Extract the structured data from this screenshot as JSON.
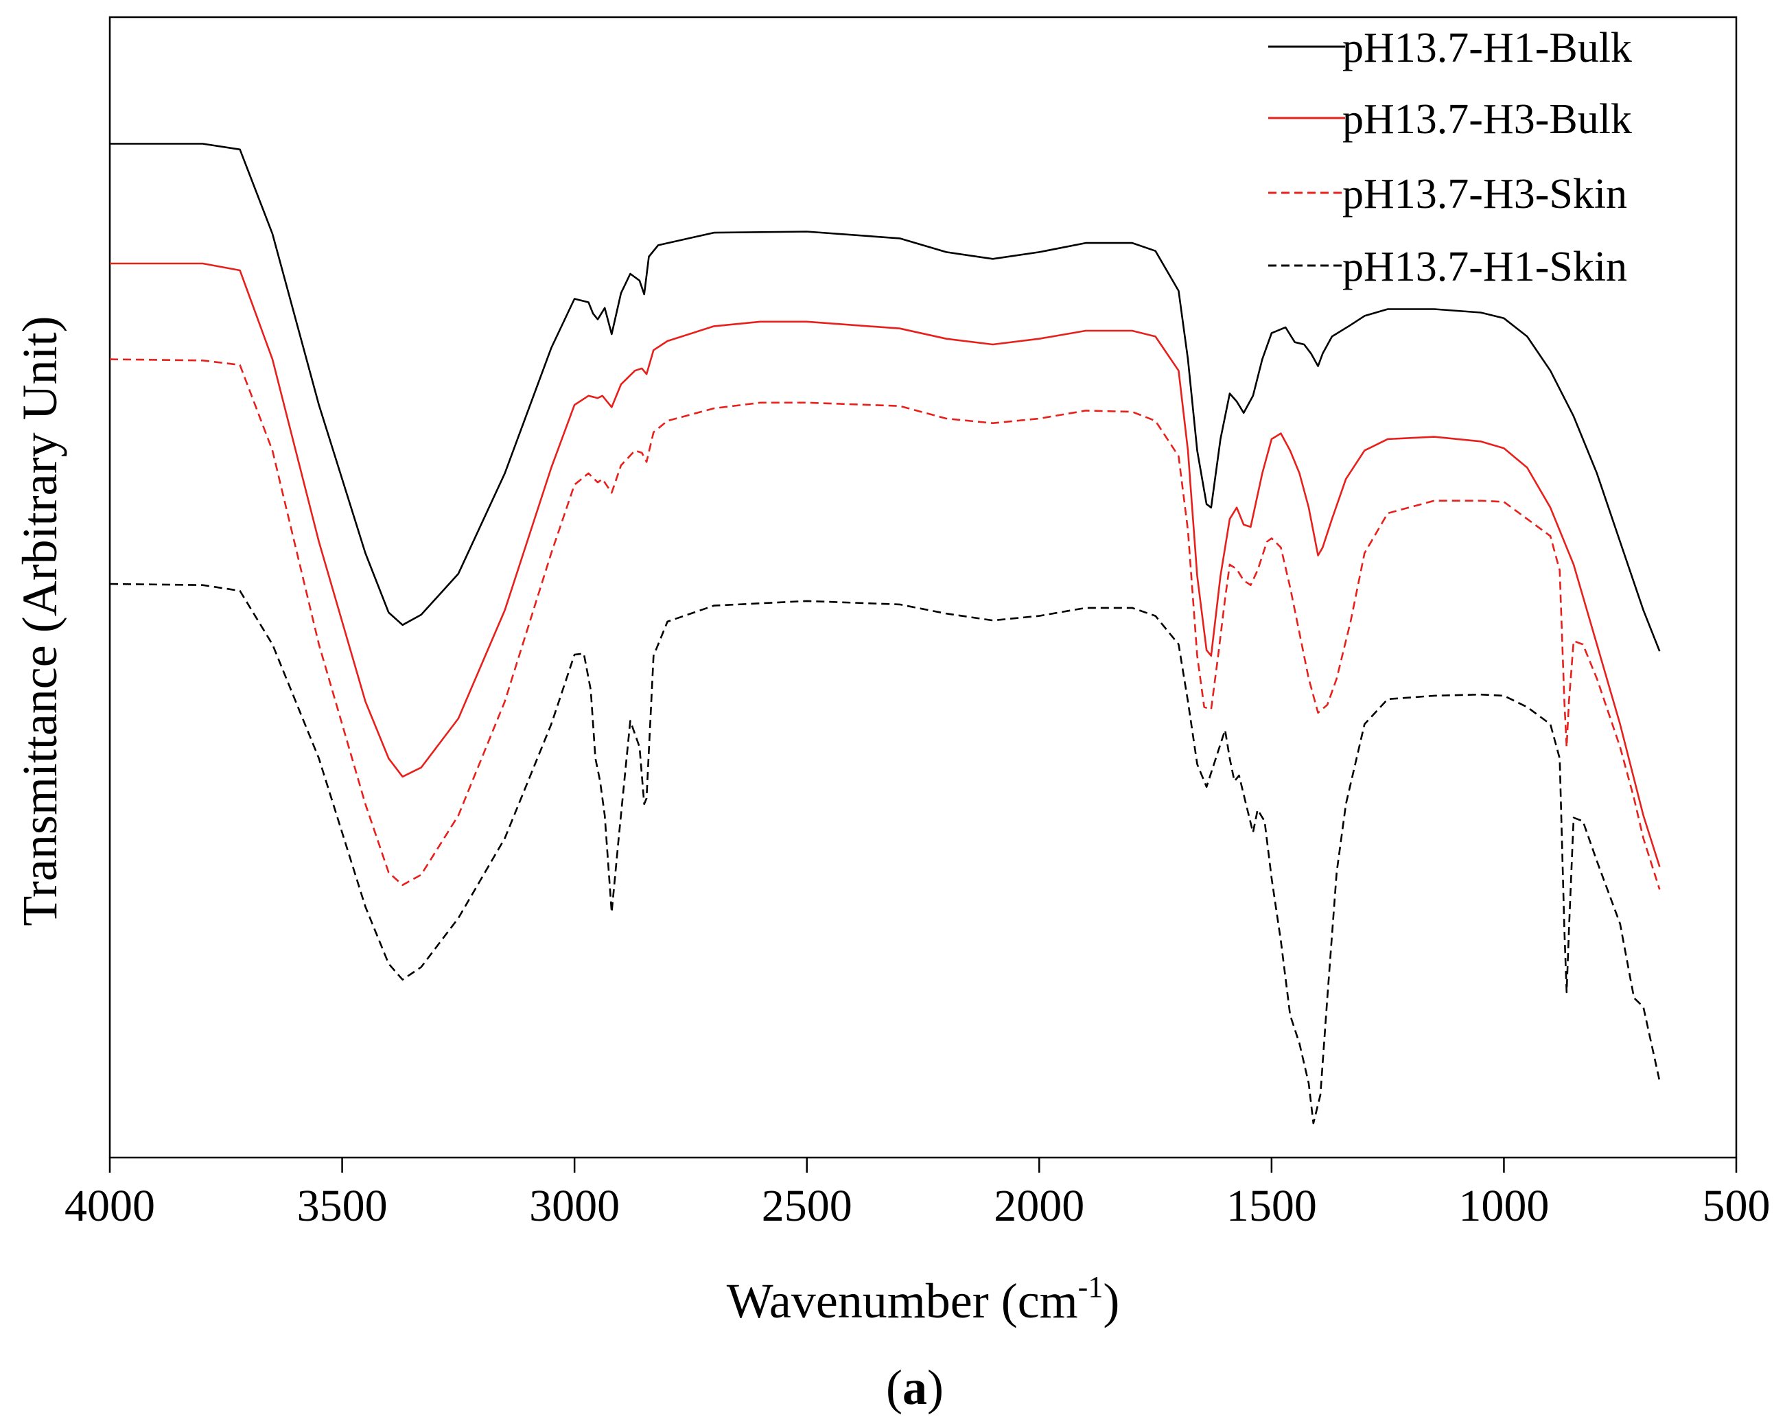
{
  "chart_data": {
    "type": "line",
    "title": "",
    "xlabel": "Wavenumber (cm",
    "xlabel_superscript": "-1",
    "xlabel_suffix": ")",
    "ylabel": "Transmittance (Arbitrary Unit)",
    "caption_open": "(",
    "caption_letter": "a",
    "caption_close": ")",
    "xlim": [
      4000,
      500
    ],
    "ylim": [
      0,
      100
    ],
    "x_ticks": [
      4000,
      3500,
      3000,
      2500,
      2000,
      1500,
      1000,
      500
    ],
    "x_tick_labels": [
      "4000",
      "3500",
      "3000",
      "2500",
      "2000",
      "1500",
      "1000",
      "500"
    ],
    "grid": false,
    "legend_position": "top-right",
    "series": [
      {
        "name": "pH13.7-H1-Bulk",
        "color": "#000000",
        "dash": "solid",
        "points": [
          [
            4000,
            88.9
          ],
          [
            3800,
            88.9
          ],
          [
            3720,
            88.4
          ],
          [
            3650,
            81
          ],
          [
            3550,
            66
          ],
          [
            3450,
            53
          ],
          [
            3400,
            47.8
          ],
          [
            3370,
            46.7
          ],
          [
            3330,
            47.6
          ],
          [
            3250,
            51.2
          ],
          [
            3150,
            60
          ],
          [
            3050,
            71
          ],
          [
            3000,
            75.3
          ],
          [
            2970,
            75
          ],
          [
            2960,
            74
          ],
          [
            2950,
            73.5
          ],
          [
            2935,
            74.5
          ],
          [
            2920,
            72.2
          ],
          [
            2900,
            75.8
          ],
          [
            2880,
            77.5
          ],
          [
            2860,
            76.9
          ],
          [
            2850,
            75.7
          ],
          [
            2840,
            79
          ],
          [
            2820,
            80
          ],
          [
            2700,
            81.1
          ],
          [
            2500,
            81.2
          ],
          [
            2300,
            80.6
          ],
          [
            2200,
            79.4
          ],
          [
            2100,
            78.8
          ],
          [
            2000,
            79.4
          ],
          [
            1900,
            80.2
          ],
          [
            1800,
            80.2
          ],
          [
            1750,
            79.5
          ],
          [
            1700,
            76
          ],
          [
            1680,
            70
          ],
          [
            1660,
            62
          ],
          [
            1640,
            57.3
          ],
          [
            1630,
            57
          ],
          [
            1610,
            63
          ],
          [
            1590,
            67
          ],
          [
            1575,
            66.3
          ],
          [
            1560,
            65.3
          ],
          [
            1540,
            66.8
          ],
          [
            1520,
            70
          ],
          [
            1500,
            72.3
          ],
          [
            1470,
            72.8
          ],
          [
            1450,
            71.5
          ],
          [
            1430,
            71.3
          ],
          [
            1415,
            70.5
          ],
          [
            1400,
            69.4
          ],
          [
            1390,
            70.5
          ],
          [
            1370,
            72
          ],
          [
            1330,
            73
          ],
          [
            1300,
            73.8
          ],
          [
            1250,
            74.4
          ],
          [
            1150,
            74.4
          ],
          [
            1050,
            74.1
          ],
          [
            1000,
            73.6
          ],
          [
            950,
            72
          ],
          [
            900,
            69
          ],
          [
            850,
            65
          ],
          [
            800,
            60
          ],
          [
            750,
            54
          ],
          [
            700,
            48
          ],
          [
            665,
            44.4
          ]
        ]
      },
      {
        "name": "pH13.7-H3-Bulk",
        "color": "#e8201c",
        "dash": "solid",
        "points": [
          [
            4000,
            78.4
          ],
          [
            3800,
            78.4
          ],
          [
            3720,
            77.8
          ],
          [
            3650,
            70
          ],
          [
            3550,
            54
          ],
          [
            3450,
            40
          ],
          [
            3400,
            35
          ],
          [
            3370,
            33.4
          ],
          [
            3330,
            34.2
          ],
          [
            3250,
            38.5
          ],
          [
            3150,
            48
          ],
          [
            3050,
            60.5
          ],
          [
            3000,
            66
          ],
          [
            2970,
            66.8
          ],
          [
            2950,
            66.6
          ],
          [
            2940,
            66.8
          ],
          [
            2920,
            65.8
          ],
          [
            2900,
            67.8
          ],
          [
            2870,
            69
          ],
          [
            2855,
            69.2
          ],
          [
            2845,
            68.7
          ],
          [
            2830,
            70.8
          ],
          [
            2800,
            71.6
          ],
          [
            2700,
            72.9
          ],
          [
            2600,
            73.3
          ],
          [
            2500,
            73.3
          ],
          [
            2300,
            72.7
          ],
          [
            2200,
            71.8
          ],
          [
            2100,
            71.3
          ],
          [
            2000,
            71.8
          ],
          [
            1900,
            72.5
          ],
          [
            1800,
            72.5
          ],
          [
            1750,
            72
          ],
          [
            1700,
            69
          ],
          [
            1680,
            62
          ],
          [
            1660,
            51
          ],
          [
            1640,
            44.5
          ],
          [
            1630,
            44
          ],
          [
            1610,
            51
          ],
          [
            1590,
            56
          ],
          [
            1575,
            57
          ],
          [
            1560,
            55.5
          ],
          [
            1545,
            55.3
          ],
          [
            1520,
            60
          ],
          [
            1500,
            63
          ],
          [
            1480,
            63.5
          ],
          [
            1460,
            62
          ],
          [
            1440,
            60
          ],
          [
            1420,
            57
          ],
          [
            1400,
            52.8
          ],
          [
            1390,
            53.5
          ],
          [
            1370,
            56
          ],
          [
            1340,
            59.5
          ],
          [
            1300,
            62
          ],
          [
            1250,
            63
          ],
          [
            1150,
            63.2
          ],
          [
            1050,
            62.8
          ],
          [
            1000,
            62.2
          ],
          [
            950,
            60.5
          ],
          [
            900,
            57
          ],
          [
            850,
            52
          ],
          [
            800,
            45
          ],
          [
            750,
            38
          ],
          [
            700,
            30
          ],
          [
            665,
            25.5
          ]
        ]
      },
      {
        "name": "pH13.7-H3-Skin",
        "color": "#e8201c",
        "dash": "dashed",
        "points": [
          [
            4000,
            70
          ],
          [
            3800,
            69.9
          ],
          [
            3720,
            69.5
          ],
          [
            3650,
            62
          ],
          [
            3550,
            45
          ],
          [
            3450,
            31
          ],
          [
            3400,
            25
          ],
          [
            3370,
            23.9
          ],
          [
            3330,
            24.8
          ],
          [
            3250,
            30
          ],
          [
            3150,
            40
          ],
          [
            3050,
            53
          ],
          [
            3000,
            59
          ],
          [
            2970,
            60
          ],
          [
            2950,
            59.2
          ],
          [
            2940,
            59.5
          ],
          [
            2920,
            58.3
          ],
          [
            2900,
            60.7
          ],
          [
            2870,
            62
          ],
          [
            2855,
            61.8
          ],
          [
            2845,
            61
          ],
          [
            2830,
            63.6
          ],
          [
            2800,
            64.6
          ],
          [
            2700,
            65.7
          ],
          [
            2600,
            66.2
          ],
          [
            2500,
            66.2
          ],
          [
            2300,
            65.9
          ],
          [
            2200,
            64.8
          ],
          [
            2100,
            64.4
          ],
          [
            2000,
            64.8
          ],
          [
            1900,
            65.5
          ],
          [
            1800,
            65.4
          ],
          [
            1750,
            64.6
          ],
          [
            1700,
            61.5
          ],
          [
            1680,
            55
          ],
          [
            1660,
            44
          ],
          [
            1645,
            39.5
          ],
          [
            1630,
            39.3
          ],
          [
            1615,
            44
          ],
          [
            1600,
            49
          ],
          [
            1590,
            52
          ],
          [
            1575,
            51.6
          ],
          [
            1560,
            50.6
          ],
          [
            1545,
            50.2
          ],
          [
            1530,
            51.5
          ],
          [
            1510,
            54
          ],
          [
            1500,
            54.3
          ],
          [
            1480,
            53.5
          ],
          [
            1460,
            50
          ],
          [
            1440,
            46
          ],
          [
            1420,
            42
          ],
          [
            1400,
            39
          ],
          [
            1380,
            39.7
          ],
          [
            1360,
            42
          ],
          [
            1330,
            47
          ],
          [
            1300,
            53
          ],
          [
            1250,
            56.5
          ],
          [
            1150,
            57.6
          ],
          [
            1050,
            57.6
          ],
          [
            1000,
            57.5
          ],
          [
            950,
            56
          ],
          [
            900,
            54.5
          ],
          [
            880,
            51.5
          ],
          [
            870,
            40
          ],
          [
            865,
            36
          ],
          [
            860,
            40
          ],
          [
            850,
            45.3
          ],
          [
            830,
            45
          ],
          [
            800,
            42
          ],
          [
            750,
            36
          ],
          [
            720,
            31.5
          ],
          [
            700,
            28
          ],
          [
            665,
            23.5
          ]
        ]
      },
      {
        "name": "pH13.7-H1-Skin",
        "color": "#000000",
        "dash": "dashed",
        "points": [
          [
            4000,
            50.3
          ],
          [
            3800,
            50.2
          ],
          [
            3720,
            49.7
          ],
          [
            3650,
            45
          ],
          [
            3550,
            35
          ],
          [
            3450,
            22
          ],
          [
            3400,
            17
          ],
          [
            3370,
            15.6
          ],
          [
            3330,
            16.7
          ],
          [
            3250,
            21
          ],
          [
            3150,
            28
          ],
          [
            3050,
            38
          ],
          [
            3000,
            44.1
          ],
          [
            2980,
            44.2
          ],
          [
            2965,
            41
          ],
          [
            2955,
            35
          ],
          [
            2945,
            33
          ],
          [
            2935,
            30
          ],
          [
            2920,
            21.5
          ],
          [
            2905,
            28
          ],
          [
            2880,
            38.3
          ],
          [
            2860,
            36
          ],
          [
            2850,
            31
          ],
          [
            2845,
            31.5
          ],
          [
            2830,
            44
          ],
          [
            2800,
            47
          ],
          [
            2700,
            48.4
          ],
          [
            2500,
            48.8
          ],
          [
            2300,
            48.5
          ],
          [
            2200,
            47.7
          ],
          [
            2100,
            47.1
          ],
          [
            2000,
            47.5
          ],
          [
            1900,
            48.2
          ],
          [
            1800,
            48.2
          ],
          [
            1750,
            47.5
          ],
          [
            1700,
            45
          ],
          [
            1680,
            40
          ],
          [
            1660,
            34.5
          ],
          [
            1640,
            32.5
          ],
          [
            1620,
            35
          ],
          [
            1600,
            37.5
          ],
          [
            1590,
            35
          ],
          [
            1580,
            33
          ],
          [
            1570,
            33.5
          ],
          [
            1555,
            31
          ],
          [
            1540,
            28.5
          ],
          [
            1530,
            30.5
          ],
          [
            1515,
            29.5
          ],
          [
            1500,
            24.5
          ],
          [
            1480,
            19
          ],
          [
            1460,
            12.5
          ],
          [
            1440,
            10
          ],
          [
            1420,
            6.5
          ],
          [
            1410,
            3
          ],
          [
            1395,
            5.5
          ],
          [
            1380,
            14
          ],
          [
            1360,
            25
          ],
          [
            1340,
            31
          ],
          [
            1300,
            38
          ],
          [
            1250,
            40.2
          ],
          [
            1150,
            40.5
          ],
          [
            1050,
            40.6
          ],
          [
            1000,
            40.5
          ],
          [
            950,
            39.5
          ],
          [
            900,
            38
          ],
          [
            880,
            35
          ],
          [
            870,
            20
          ],
          [
            865,
            14.5
          ],
          [
            860,
            20
          ],
          [
            850,
            29.8
          ],
          [
            830,
            29.5
          ],
          [
            800,
            26
          ],
          [
            750,
            20.5
          ],
          [
            720,
            14
          ],
          [
            700,
            13.2
          ],
          [
            665,
            6.7
          ]
        ]
      }
    ]
  }
}
